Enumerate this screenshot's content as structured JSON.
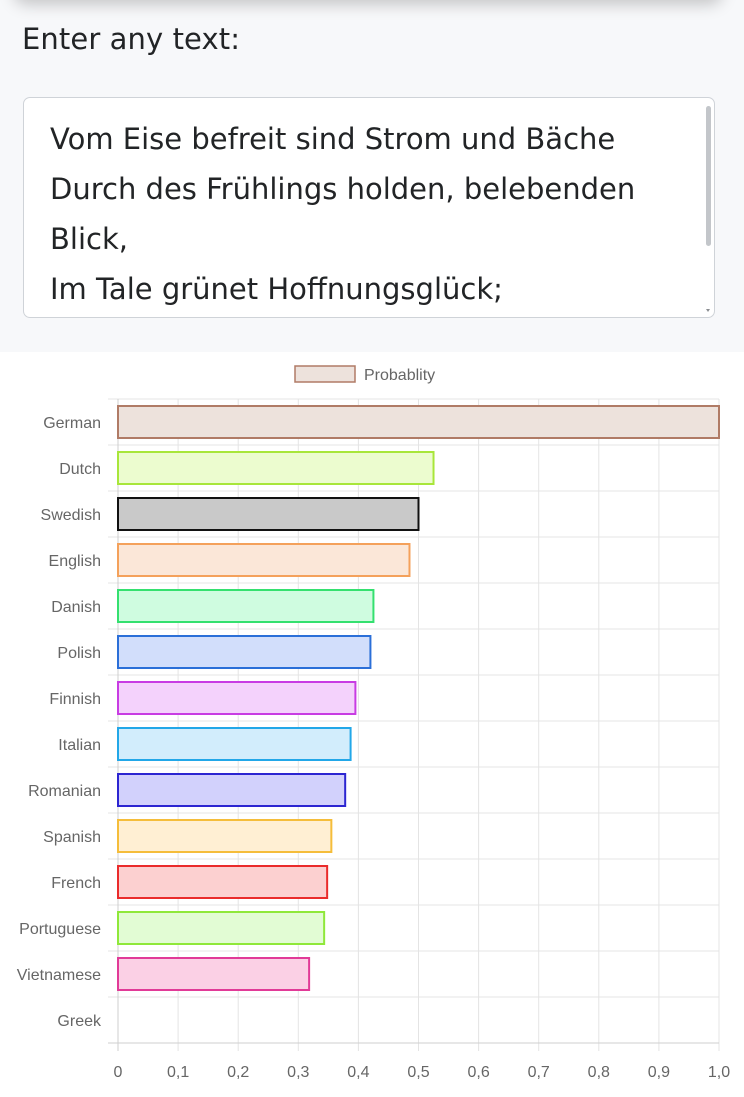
{
  "input": {
    "label": "Enter any text:",
    "value": "Vom Eise befreit sind Strom und Bäche\nDurch des Frühlings holden, belebenden\nBlick,\nIm Tale grünet Hoffnungsglück;"
  },
  "chart_data": {
    "type": "bar",
    "orientation": "horizontal",
    "legend": {
      "label": "Probablity",
      "placement": "top"
    },
    "categories": [
      "German",
      "Dutch",
      "Swedish",
      "English",
      "Danish",
      "Polish",
      "Finnish",
      "Italian",
      "Romanian",
      "Spanish",
      "French",
      "Portuguese",
      "Vietnamese",
      "Greek"
    ],
    "values": [
      1.0,
      0.525,
      0.5,
      0.485,
      0.425,
      0.42,
      0.395,
      0.387,
      0.378,
      0.355,
      0.348,
      0.343,
      0.318,
      0
    ],
    "colors": {
      "border": [
        "#b07b66",
        "#a8e63a",
        "#111111",
        "#f4a15b",
        "#34e06f",
        "#2b6fd8",
        "#c83ce3",
        "#22a7e8",
        "#2c25d1",
        "#f5bd3a",
        "#ea2b2b",
        "#8fe83a",
        "#e13a97",
        "#999999"
      ],
      "fill": [
        "#ede2dc",
        "#ecfccf",
        "#c9c9c9",
        "#fbe7d8",
        "#cffce0",
        "#d2defb",
        "#f4d2fc",
        "#d2edfc",
        "#d2d1fc",
        "#ffefd3",
        "#fcd0d0",
        "#e2fcd4",
        "#fbd0e5",
        "#eeeeee"
      ]
    },
    "x_ticks": [
      "0",
      "0,1",
      "0,2",
      "0,3",
      "0,4",
      "0,5",
      "0,6",
      "0,7",
      "0,8",
      "0,9",
      "1,0"
    ],
    "xlim": [
      0,
      1
    ],
    "grid": true
  }
}
